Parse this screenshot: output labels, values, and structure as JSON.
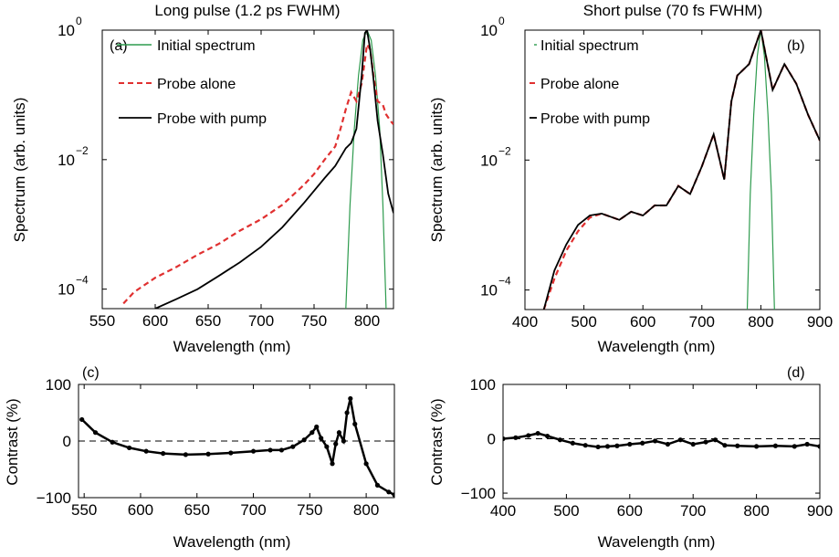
{
  "colors": {
    "initial": "#2e9b4e",
    "probe_alone": "#e03030",
    "probe_pump": "#000000",
    "axis": "#000000"
  },
  "chart_data": [
    {
      "id": "a",
      "type": "line",
      "title": "Long pulse (1.2 ps FWHM)",
      "panel_label": "(a)",
      "xlabel": "Wavelength (nm)",
      "ylabel": "Spectrum (arb. units)",
      "xlim": [
        550,
        825
      ],
      "ylim": [
        5e-05,
        1.0
      ],
      "yscale": "log",
      "xticks": [
        550,
        600,
        650,
        700,
        750,
        800
      ],
      "yticks": [
        {
          "value": 1,
          "base": "10",
          "exp": "0"
        },
        {
          "value": 0.01,
          "base": "10",
          "exp": "−2"
        },
        {
          "value": 0.0001,
          "base": "10",
          "exp": "−4"
        }
      ],
      "grid": false,
      "legend_position": "top-left",
      "series": [
        {
          "name": "Initial spectrum",
          "color": "#2e9b4e",
          "dash": "solid",
          "x": [
            780,
            784,
            788,
            792,
            796,
            800,
            804,
            808,
            812,
            815,
            818
          ],
          "y": [
            5e-05,
            0.002,
            0.03,
            0.2,
            0.7,
            1.0,
            0.7,
            0.2,
            0.03,
            0.002,
            5e-05
          ]
        },
        {
          "name": "Probe alone",
          "color": "#e03030",
          "dash": "dashed",
          "x": [
            570,
            580,
            600,
            620,
            640,
            660,
            680,
            700,
            720,
            740,
            750,
            760,
            770,
            775,
            780,
            785,
            790,
            795,
            800,
            803,
            806,
            810,
            815,
            818,
            822,
            825
          ],
          "y": [
            6e-05,
            9e-05,
            0.00015,
            0.00022,
            0.00034,
            0.0005,
            0.0008,
            0.0012,
            0.002,
            0.004,
            0.006,
            0.01,
            0.016,
            0.03,
            0.06,
            0.11,
            0.08,
            0.15,
            0.6,
            0.5,
            0.2,
            0.08,
            0.07,
            0.05,
            0.04,
            0.035
          ]
        },
        {
          "name": "Probe with pump",
          "color": "#000000",
          "dash": "solid",
          "x": [
            600,
            620,
            640,
            660,
            680,
            700,
            720,
            740,
            760,
            770,
            780,
            785,
            790,
            795,
            798,
            800,
            803,
            806,
            810,
            815,
            820,
            825
          ],
          "y": [
            5e-05,
            7e-05,
            0.0001,
            0.00016,
            0.00026,
            0.00045,
            0.0009,
            0.0021,
            0.0052,
            0.008,
            0.015,
            0.018,
            0.03,
            0.2,
            0.9,
            1.0,
            0.5,
            0.18,
            0.04,
            0.012,
            0.003,
            0.0015
          ]
        }
      ]
    },
    {
      "id": "b",
      "type": "line",
      "title": "Short pulse (70 fs FWHM)",
      "panel_label": "(b)",
      "xlabel": "Wavelength (nm)",
      "ylabel": "Spectrum (arb. units)",
      "xlim": [
        400,
        900
      ],
      "ylim": [
        5e-05,
        1.0
      ],
      "yscale": "log",
      "xticks": [
        400,
        500,
        600,
        700,
        800,
        900
      ],
      "yticks": [
        {
          "value": 1,
          "base": "10",
          "exp": "0"
        },
        {
          "value": 0.01,
          "base": "10",
          "exp": "−2"
        },
        {
          "value": 0.0001,
          "base": "10",
          "exp": "−4"
        }
      ],
      "grid": false,
      "legend_position": "top-left",
      "series": [
        {
          "name": "Initial spectrum",
          "color": "#2e9b4e",
          "dash": "solid",
          "x": [
            777,
            782,
            788,
            794,
            800,
            806,
            812,
            818,
            823
          ],
          "y": [
            5e-05,
            0.003,
            0.05,
            0.4,
            1.0,
            0.4,
            0.05,
            0.003,
            5e-05
          ]
        },
        {
          "name": "Probe alone",
          "color": "#e03030",
          "dash": "dashed",
          "x": [
            432,
            450,
            470,
            490,
            510,
            530,
            560,
            580,
            600,
            620,
            640,
            660,
            680,
            700,
            720,
            738,
            750,
            760,
            780,
            800,
            820,
            840,
            860,
            880,
            900
          ],
          "y": [
            5e-05,
            0.00015,
            0.0004,
            0.0008,
            0.0013,
            0.0015,
            0.0012,
            0.0016,
            0.0014,
            0.002,
            0.002,
            0.004,
            0.003,
            0.008,
            0.025,
            0.005,
            0.08,
            0.2,
            0.3,
            1.0,
            0.12,
            0.3,
            0.15,
            0.05,
            0.02
          ]
        },
        {
          "name": "Probe with pump",
          "color": "#000000",
          "dash": "solid",
          "x": [
            432,
            450,
            470,
            490,
            510,
            530,
            560,
            580,
            600,
            620,
            640,
            660,
            680,
            700,
            720,
            738,
            750,
            760,
            780,
            800,
            820,
            840,
            860,
            880,
            900
          ],
          "y": [
            5e-05,
            0.0002,
            0.0005,
            0.001,
            0.0014,
            0.0015,
            0.0012,
            0.0016,
            0.0014,
            0.002,
            0.002,
            0.004,
            0.003,
            0.008,
            0.025,
            0.005,
            0.08,
            0.2,
            0.3,
            1.0,
            0.12,
            0.3,
            0.15,
            0.05,
            0.02
          ]
        }
      ]
    },
    {
      "id": "c",
      "type": "scatter",
      "panel_label": "(c)",
      "xlabel": "Wavelength (nm)",
      "ylabel": "Contrast (%)",
      "xlim": [
        545,
        825
      ],
      "ylim": [
        -100,
        100
      ],
      "xticks": [
        550,
        600,
        650,
        700,
        750,
        800
      ],
      "yticks": [
        {
          "value": 100,
          "label": "100"
        },
        {
          "value": 0,
          "label": "0"
        },
        {
          "value": -100,
          "label": "−100"
        }
      ],
      "grid": false,
      "zero_line": true,
      "series": [
        {
          "name": "",
          "color": "#000000",
          "x": [
            548,
            560,
            575,
            590,
            605,
            620,
            640,
            660,
            680,
            700,
            715,
            725,
            735,
            745,
            752,
            756,
            760,
            765,
            770,
            773,
            776,
            780,
            783,
            786,
            790,
            800,
            810,
            820,
            825
          ],
          "y": [
            38,
            15,
            -2,
            -12,
            -18,
            -22,
            -24,
            -23,
            -21,
            -18,
            -16,
            -16,
            -10,
            2,
            15,
            25,
            5,
            -10,
            -40,
            -5,
            15,
            0,
            50,
            75,
            30,
            -40,
            -78,
            -90,
            -95
          ]
        }
      ]
    },
    {
      "id": "d",
      "type": "scatter",
      "panel_label": "(d)",
      "xlabel": "Wavelength (nm)",
      "ylabel": "Contrast (%)",
      "xlim": [
        400,
        900
      ],
      "ylim": [
        -110,
        100
      ],
      "xticks": [
        400,
        500,
        600,
        700,
        800,
        900
      ],
      "yticks": [
        {
          "value": 100,
          "label": "100"
        },
        {
          "value": 0,
          "label": "0"
        },
        {
          "value": -100,
          "label": "−100"
        }
      ],
      "grid": false,
      "zero_line": true,
      "series": [
        {
          "name": "",
          "color": "#000000",
          "x": [
            400,
            420,
            440,
            455,
            470,
            490,
            510,
            530,
            550,
            565,
            580,
            600,
            620,
            640,
            660,
            680,
            700,
            720,
            735,
            750,
            770,
            800,
            830,
            860,
            880,
            900
          ],
          "y": [
            0,
            2,
            6,
            10,
            5,
            -2,
            -8,
            -12,
            -15,
            -14,
            -13,
            -10,
            -8,
            -4,
            -10,
            -2,
            -10,
            -6,
            -2,
            -12,
            -13,
            -14,
            -13,
            -14,
            -10,
            -14
          ]
        }
      ]
    }
  ]
}
